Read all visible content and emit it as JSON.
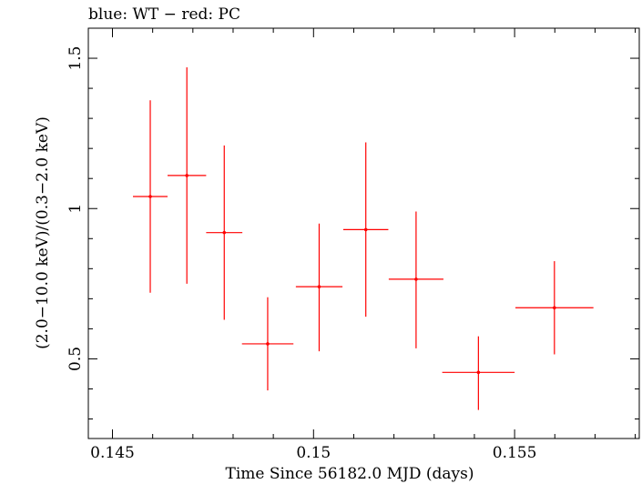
{
  "chart_data": {
    "type": "scatter",
    "title": "blue: WT − red: PC",
    "xlabel": "Time Since 56182.0 MJD (days)",
    "ylabel": "(2.0−10.0 keV)/(0.3−2.0 keV)",
    "xlim": [
      0.1444,
      0.1581
    ],
    "ylim": [
      0.235,
      1.6
    ],
    "x_ticks": [
      {
        "value": 0.145,
        "label": "0.145"
      },
      {
        "value": 0.15,
        "label": "0.15"
      },
      {
        "value": 0.155,
        "label": "0.155"
      }
    ],
    "y_ticks": [
      {
        "value": 0.5,
        "label": "0.5"
      },
      {
        "value": 1.0,
        "label": "1"
      },
      {
        "value": 1.5,
        "label": "1.5"
      }
    ],
    "grid": false,
    "series": [
      {
        "color": "#ff0000",
        "points": [
          {
            "x": 0.14594,
            "xerr": 0.00043,
            "y": 1.04,
            "ylo": 0.72,
            "yhi": 1.36
          },
          {
            "x": 0.14685,
            "xerr": 0.00048,
            "y": 1.11,
            "ylo": 0.75,
            "yhi": 1.47
          },
          {
            "x": 0.14778,
            "xerr": 0.00045,
            "y": 0.92,
            "ylo": 0.63,
            "yhi": 1.21
          },
          {
            "x": 0.14886,
            "xerr": 0.00064,
            "y": 0.55,
            "ylo": 0.395,
            "yhi": 0.705
          },
          {
            "x": 0.15014,
            "xerr": 0.00058,
            "y": 0.74,
            "ylo": 0.525,
            "yhi": 0.95
          },
          {
            "x": 0.1513,
            "xerr": 0.00056,
            "y": 0.93,
            "ylo": 0.64,
            "yhi": 1.22
          },
          {
            "x": 0.15255,
            "xerr": 0.00068,
            "y": 0.765,
            "ylo": 0.535,
            "yhi": 0.99
          },
          {
            "x": 0.1541,
            "xerr": 0.0009,
            "y": 0.455,
            "ylo": 0.33,
            "yhi": 0.575
          },
          {
            "x": 0.15599,
            "xerr": 0.00097,
            "y": 0.67,
            "ylo": 0.515,
            "yhi": 0.825
          }
        ]
      }
    ]
  }
}
